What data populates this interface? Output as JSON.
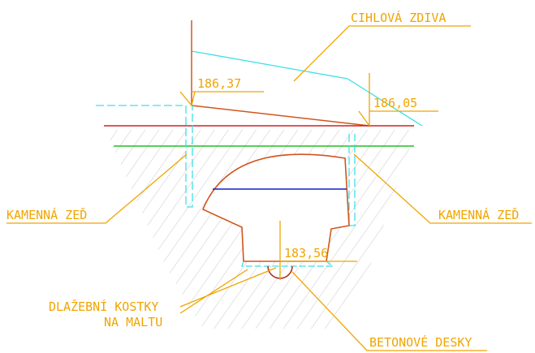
{
  "labels": {
    "masonry": "CIHLOVÁ ZDIVA",
    "stone_wall_left": "KAMENNÁ ZEĎ",
    "stone_wall_right": "KAMENNÁ ZEĎ",
    "paving": [
      "DLAŽEBNÍ KOSTKY",
      "NA MALTU"
    ],
    "concrete": "BETONOVÉ DESKY"
  },
  "levels": [
    "186,37",
    "186,05",
    "183,56"
  ]
}
